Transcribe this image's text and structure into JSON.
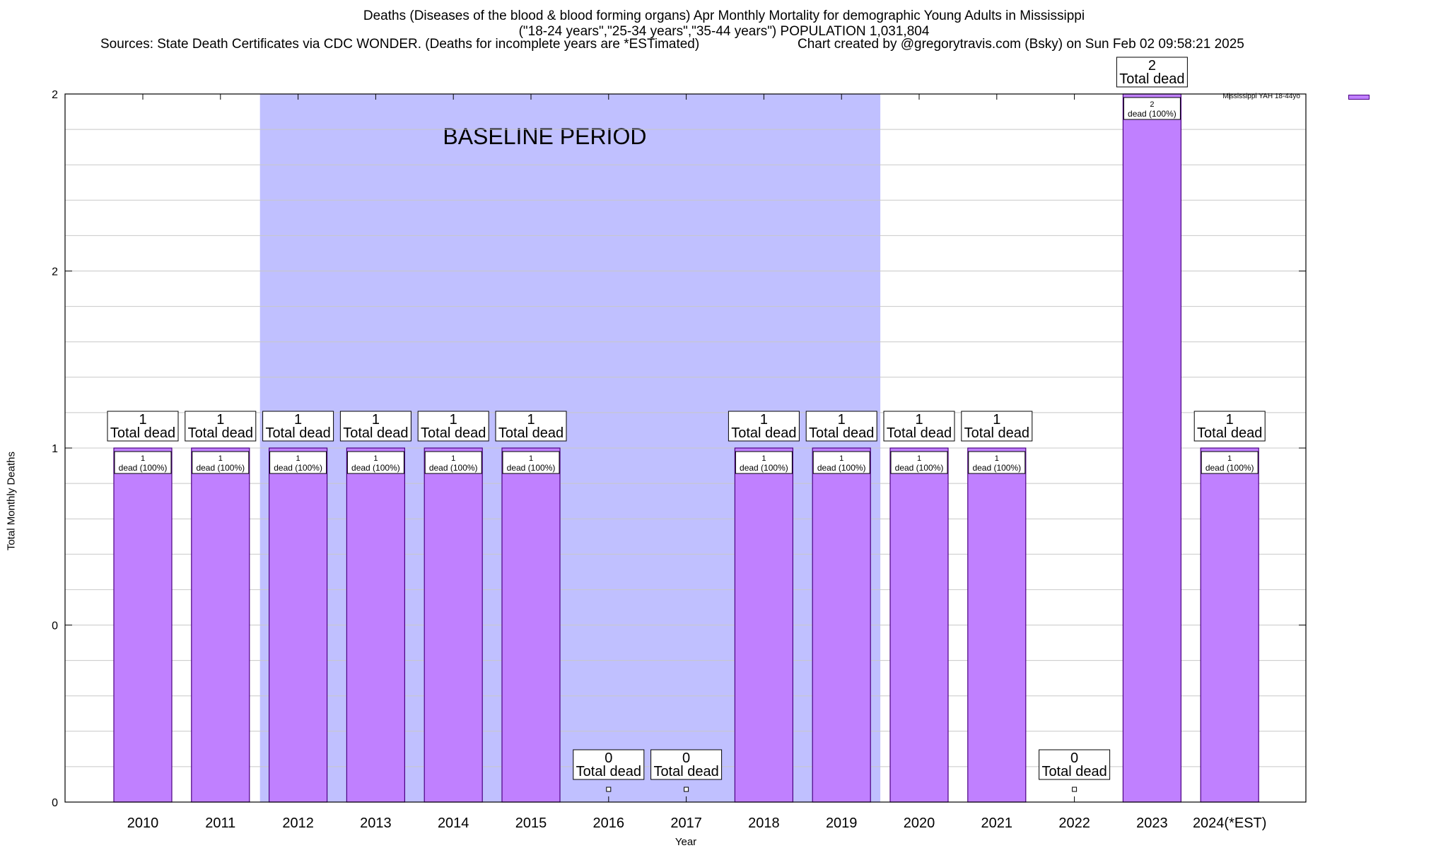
{
  "header": {
    "title_line1": "Deaths (Diseases of the blood & blood forming organs) Apr Monthly Mortality for demographic Young Adults in Mississippi",
    "title_line2": "(\"18-24 years\",\"25-34 years\",\"35-44 years\") POPULATION 1,031,804",
    "sources": "Sources: State Death Certificates via CDC WONDER. (Deaths for incomplete years are *ESTimated)",
    "credit": "Chart created by @gregorytravis.com (Bsky) on Sun Feb 02 09:58:21 2025"
  },
  "chart_data": {
    "type": "bar",
    "xlabel": "Year",
    "ylabel": "Total Monthly Deaths",
    "categories": [
      "2010",
      "2011",
      "2012",
      "2013",
      "2014",
      "2015",
      "2016",
      "2017",
      "2018",
      "2019",
      "2020",
      "2021",
      "2022",
      "2023",
      "2024(*EST)"
    ],
    "series": [
      {
        "name": "Mississippi YAH 18-44yo",
        "values": [
          1,
          1,
          1,
          1,
          1,
          1,
          0,
          0,
          1,
          1,
          1,
          1,
          0,
          2,
          1
        ],
        "color": "#c080ff",
        "edge_color": "#4b0082"
      }
    ],
    "ylim": [
      0,
      2
    ],
    "yticks": [
      {
        "value": 0,
        "label": "0"
      },
      {
        "value": 0.5,
        "label": "0"
      },
      {
        "value": 1,
        "label": "1"
      },
      {
        "value": 1.5,
        "label": "2"
      },
      {
        "value": 2,
        "label": "2"
      }
    ],
    "grid": true,
    "legend_position": "top-right",
    "baseline_period": {
      "label": "BASELINE PERIOD",
      "from": "2012",
      "to": "2019",
      "color": "#c0c0ff"
    },
    "total_label_suffix": "Total dead",
    "inner_label_suffix": "dead (100%)"
  }
}
